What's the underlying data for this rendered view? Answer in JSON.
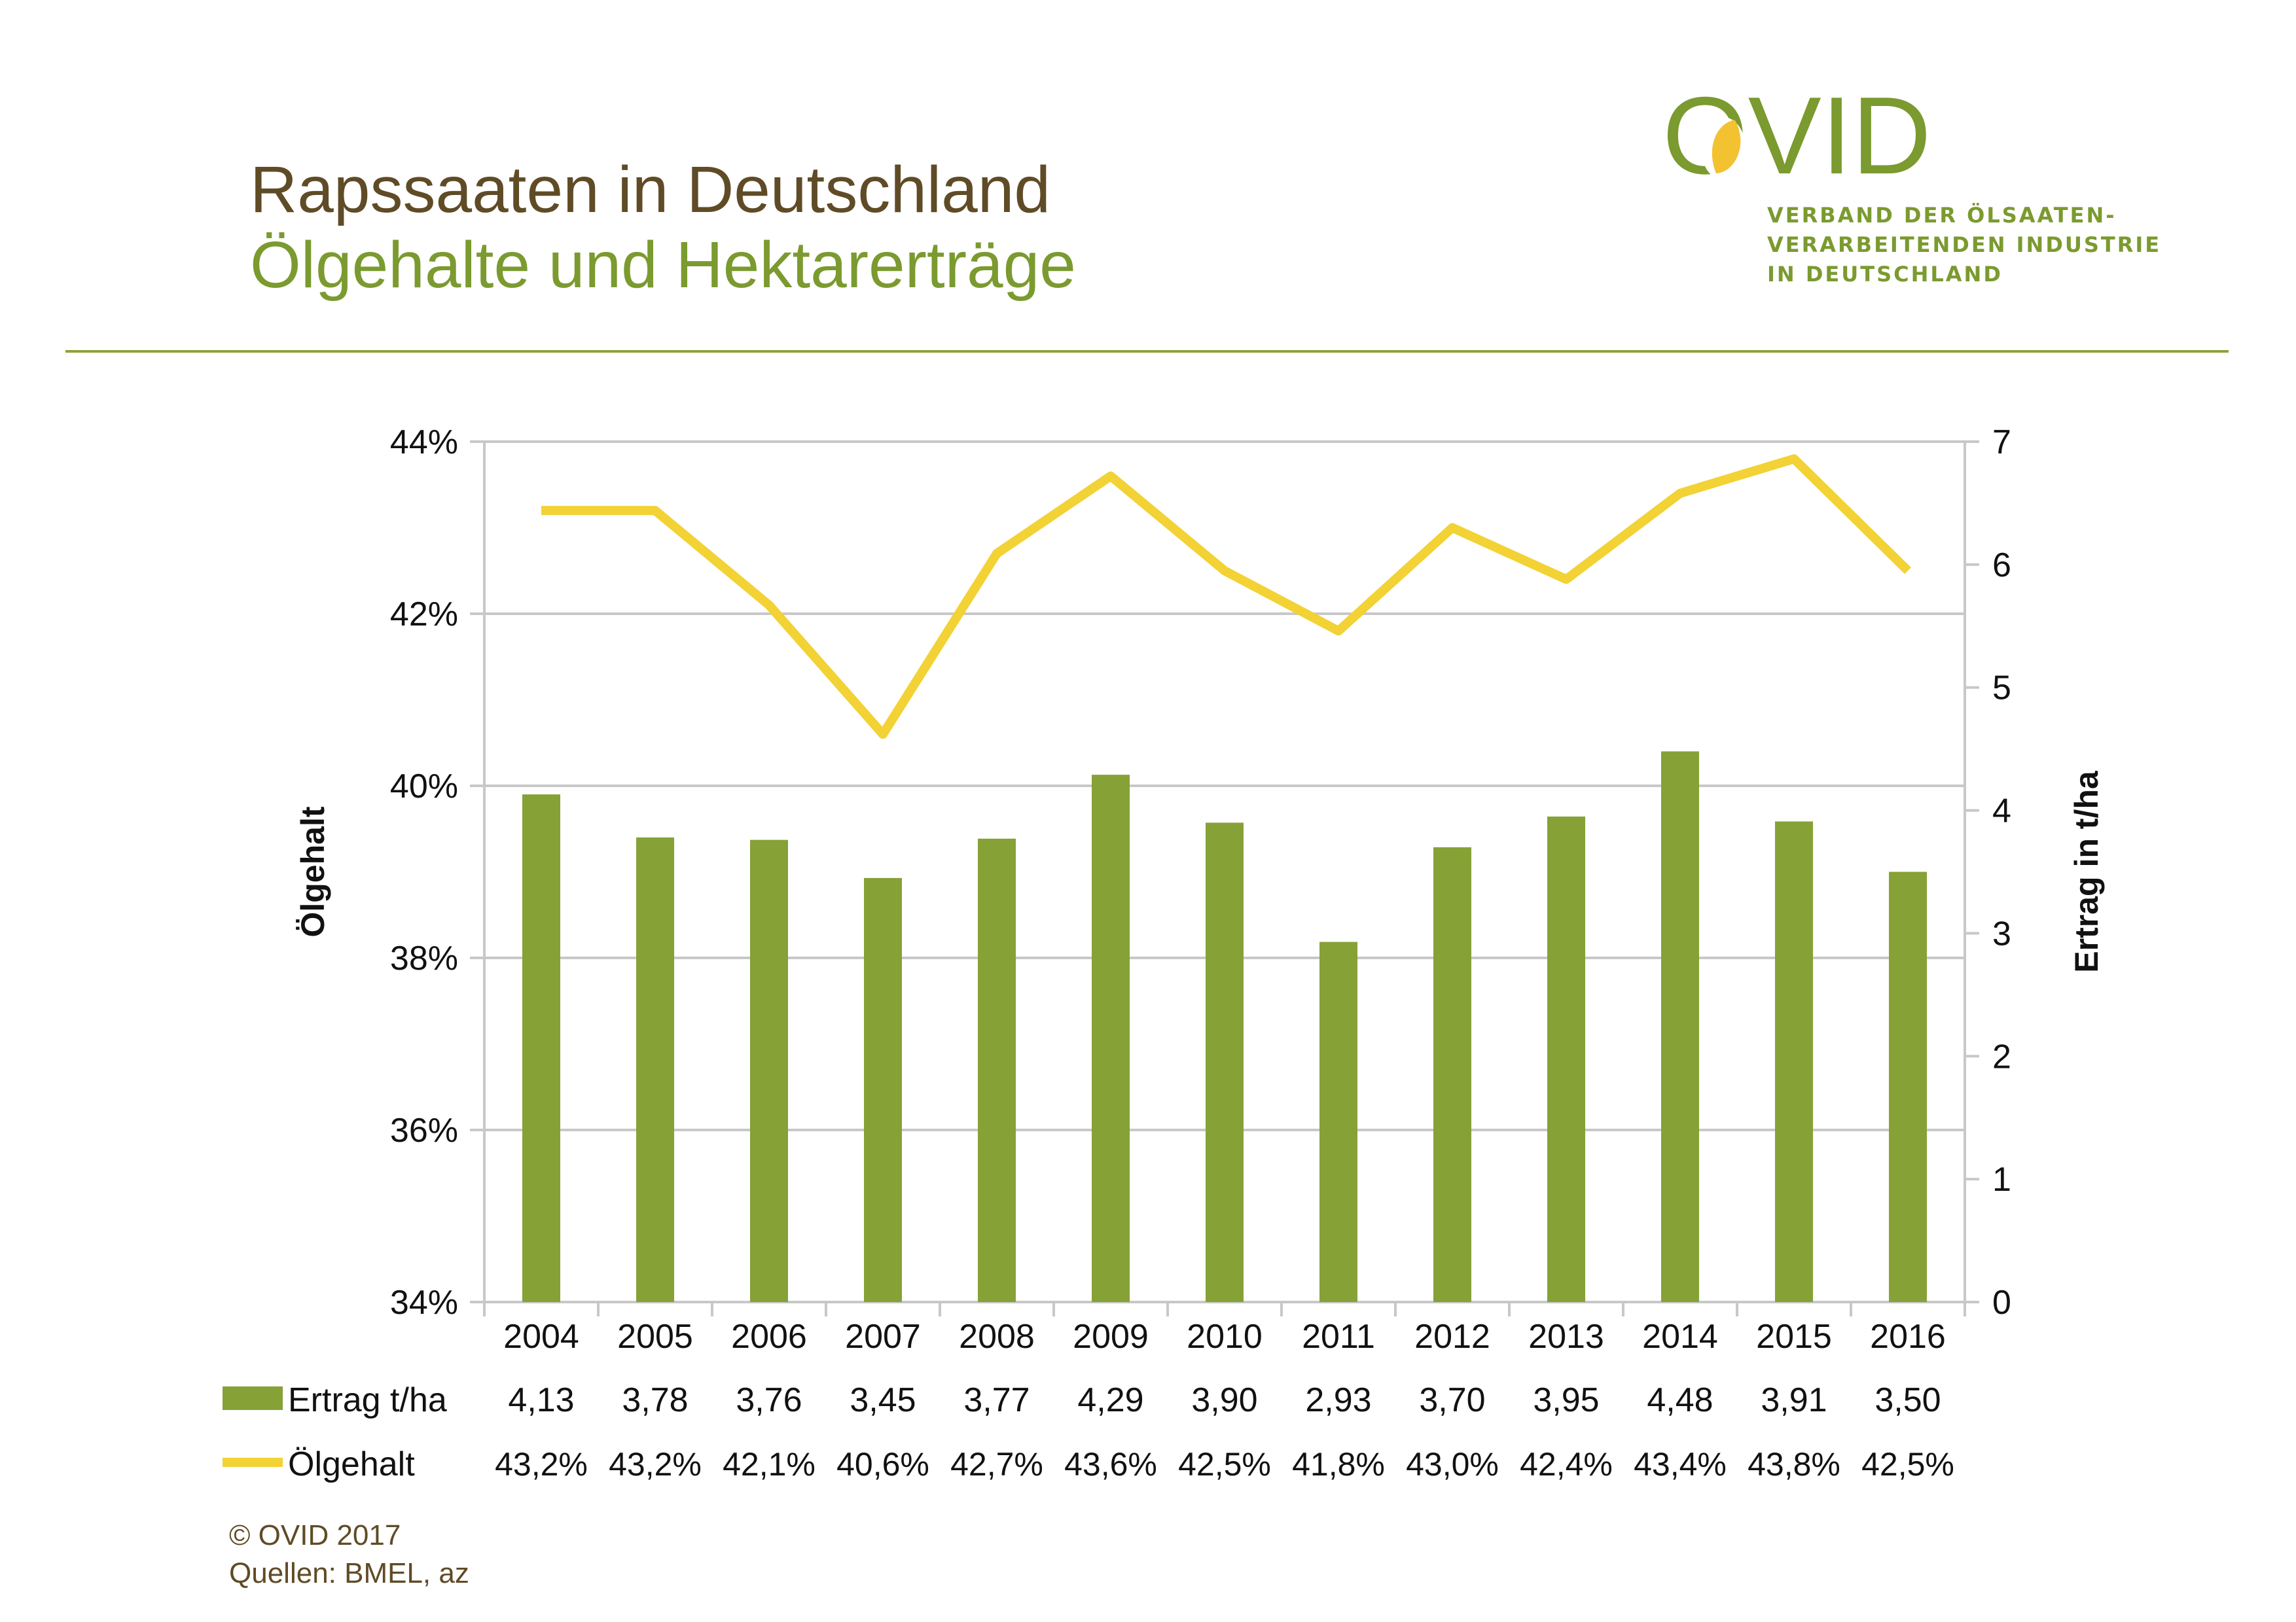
{
  "header": {
    "title": "Rapssaaten in Deutschland",
    "subtitle": "Ölgehalte und Hektarerträge"
  },
  "logo": {
    "wordmark": "OVID",
    "tagline_lines": [
      "VERBAND DER ÖLSAATEN-",
      "VERARBEITENDEN INDUSTRIE",
      "IN DEUTSCHLAND"
    ]
  },
  "footer": {
    "copyright": "© OVID 2017",
    "sources": "Quellen: BMEL, az"
  },
  "colors": {
    "bar": "#86a136",
    "line": "#f2d234",
    "title_brown": "#5f4b26",
    "accent_green": "#7b9a2f",
    "grid": "#c8c8c8"
  },
  "chart_data": {
    "type": "bar",
    "categories": [
      "2004",
      "2005",
      "2006",
      "2007",
      "2008",
      "2009",
      "2010",
      "2011",
      "2012",
      "2013",
      "2014",
      "2015",
      "2016"
    ],
    "series": [
      {
        "name": "Ertrag t/ha",
        "type": "bar",
        "axis": "right",
        "values": [
          4.13,
          3.78,
          3.76,
          3.45,
          3.77,
          4.29,
          3.9,
          2.93,
          3.7,
          3.95,
          4.48,
          3.91,
          3.5
        ],
        "labels": [
          "4,13",
          "3,78",
          "3,76",
          "3,45",
          "3,77",
          "4,29",
          "3,90",
          "2,93",
          "3,70",
          "3,95",
          "4,48",
          "3,91",
          "3,50"
        ]
      },
      {
        "name": "Ölgehalt",
        "type": "line",
        "axis": "left",
        "values": [
          43.2,
          43.2,
          42.1,
          40.6,
          42.7,
          43.6,
          42.5,
          41.8,
          43.0,
          42.4,
          43.4,
          43.8,
          42.5
        ],
        "labels": [
          "43,2%",
          "43,2%",
          "42,1%",
          "40,6%",
          "42,7%",
          "43,6%",
          "42,5%",
          "41,8%",
          "43,0%",
          "42,4%",
          "43,4%",
          "43,8%",
          "42,5%"
        ]
      }
    ],
    "y_left": {
      "label": "Ölgehalt",
      "range": [
        34,
        44
      ],
      "ticks": [
        34,
        36,
        38,
        40,
        42,
        44
      ],
      "tick_labels": [
        "34%",
        "36%",
        "38%",
        "40%",
        "42%",
        "44%"
      ]
    },
    "y_right": {
      "label": "Ertrag in t/ha",
      "range": [
        0,
        7
      ],
      "ticks": [
        0,
        1,
        2,
        3,
        4,
        5,
        6,
        7
      ],
      "tick_labels": [
        "0",
        "1",
        "2",
        "3",
        "4",
        "5",
        "6",
        "7"
      ]
    },
    "grid": true,
    "legend": "data-table-below"
  }
}
